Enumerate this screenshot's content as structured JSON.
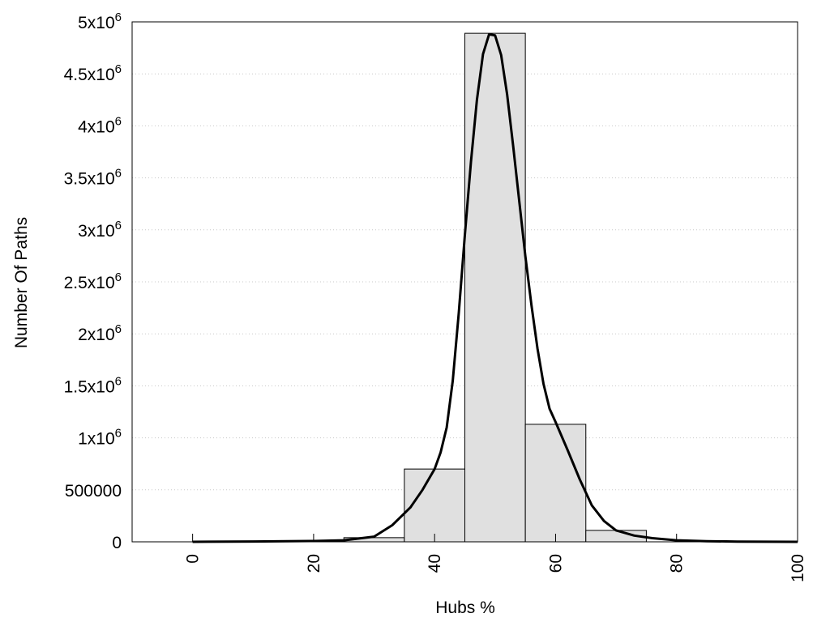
{
  "chart_data": {
    "type": "bar",
    "xlabel": "Hubs %",
    "ylabel": "Number Of Paths",
    "xlim": [
      -10,
      100
    ],
    "ylim": [
      0,
      5000000
    ],
    "grid": {
      "y": true,
      "x": false,
      "style": "dotted"
    },
    "x_ticks": [
      0,
      20,
      40,
      60,
      80,
      100
    ],
    "x_tick_labels": [
      "0",
      "20",
      "40",
      "60",
      "80",
      "100"
    ],
    "y_ticks": [
      0,
      500000,
      1000000,
      1500000,
      2000000,
      2500000,
      3000000,
      3500000,
      4000000,
      4500000,
      5000000
    ],
    "y_tick_labels": [
      {
        "base": "0",
        "sup": ""
      },
      {
        "base": "500000",
        "sup": ""
      },
      {
        "base": "1x10",
        "sup": "6"
      },
      {
        "base": "1.5x10",
        "sup": "6"
      },
      {
        "base": "2x10",
        "sup": "6"
      },
      {
        "base": "2.5x10",
        "sup": "6"
      },
      {
        "base": "3x10",
        "sup": "6"
      },
      {
        "base": "3.5x10",
        "sup": "6"
      },
      {
        "base": "4x10",
        "sup": "6"
      },
      {
        "base": "4.5x10",
        "sup": "6"
      },
      {
        "base": "5x10",
        "sup": "6"
      }
    ],
    "bar_color": "#e0e0e0",
    "bar_edge_color": "#000000",
    "curve_color": "#000000",
    "bins": [
      {
        "from": 25,
        "to": 35,
        "value": 40000
      },
      {
        "from": 35,
        "to": 45,
        "value": 700000
      },
      {
        "from": 45,
        "to": 55,
        "value": 4890000
      },
      {
        "from": 55,
        "to": 65,
        "value": 1130000
      },
      {
        "from": 65,
        "to": 75,
        "value": 110000
      }
    ],
    "curve": {
      "x": [
        0,
        10,
        20,
        25,
        30,
        33,
        36,
        38,
        40,
        41,
        42,
        43,
        44,
        45,
        46,
        47,
        48,
        49,
        50,
        51,
        52,
        53,
        54,
        55,
        56,
        57,
        58,
        59,
        60,
        62,
        64,
        66,
        68,
        70,
        73,
        76,
        80,
        85,
        90,
        100
      ],
      "y": [
        0,
        3000,
        8000,
        15000,
        50000,
        160000,
        330000,
        500000,
        700000,
        860000,
        1100000,
        1550000,
        2200000,
        2950000,
        3650000,
        4250000,
        4690000,
        4880000,
        4870000,
        4680000,
        4300000,
        3800000,
        3270000,
        2750000,
        2280000,
        1860000,
        1520000,
        1280000,
        1150000,
        880000,
        600000,
        350000,
        200000,
        110000,
        60000,
        35000,
        15000,
        6000,
        2000,
        0
      ]
    }
  }
}
